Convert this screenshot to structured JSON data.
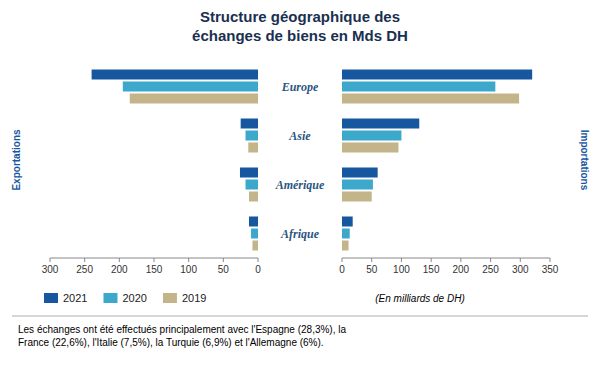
{
  "chart_data": [
    {
      "type": "bar",
      "orientation": "horizontal",
      "title": "Structure géographique des\néchanges de biens en Mds DH",
      "ylabel": "Exportations",
      "categories": [
        "Europe",
        "Asie",
        "Amérique",
        "Afrique"
      ],
      "series": [
        {
          "name": "2021",
          "color": "#1757a0",
          "values": [
            240,
            25,
            26,
            13
          ]
        },
        {
          "name": "2020",
          "color": "#3ca8cc",
          "values": [
            195,
            18,
            18,
            10
          ]
        },
        {
          "name": "2019",
          "color": "#c4b48a",
          "values": [
            185,
            14,
            13,
            8
          ]
        }
      ],
      "xlim": [
        300,
        0
      ],
      "xticks": [
        300,
        250,
        200,
        150,
        100,
        50,
        0
      ],
      "grid": false,
      "legend": "bottom"
    },
    {
      "type": "bar",
      "orientation": "horizontal",
      "ylabel": "Importations",
      "categories": [
        "Europe",
        "Asie",
        "Amérique",
        "Afrique"
      ],
      "series": [
        {
          "name": "2021",
          "color": "#1757a0",
          "values": [
            320,
            130,
            60,
            18
          ]
        },
        {
          "name": "2020",
          "color": "#3ca8cc",
          "values": [
            258,
            100,
            52,
            13
          ]
        },
        {
          "name": "2019",
          "color": "#c4b48a",
          "values": [
            298,
            95,
            50,
            11
          ]
        }
      ],
      "xlim": [
        0,
        350
      ],
      "xticks": [
        0,
        50,
        100,
        150,
        200,
        250,
        300,
        350
      ],
      "grid": false,
      "annotations": [
        "(En milliards de DH)",
        "Les échanges ont été effectués principalement avec l'Espagne (28,3%), la\nFrance (22,6%), l'Italie (7,5%), la Turquie (6,9%) et l'Allemagne (6%)."
      ]
    }
  ]
}
